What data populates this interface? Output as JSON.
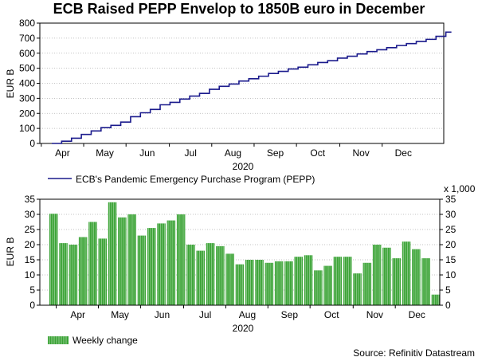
{
  "colors": {
    "line": "#1a1a8c",
    "bar": "#3aa335",
    "grid": "#b0b0b0"
  },
  "title": "ECB Raised PEPP Envelop to 1850B euro in December",
  "source": "Source: Refinitiv Datastream",
  "chart_data": [
    {
      "type": "line",
      "title": "ECB Raised PEPP Envelop to 1850B euro in December",
      "ylabel": "EUR B",
      "xlabel": "2020",
      "ylim": [
        0,
        800
      ],
      "yticks": [
        0,
        100,
        200,
        300,
        400,
        500,
        600,
        700,
        800
      ],
      "xlim": [
        0,
        41
      ],
      "month_labels": [
        "Apr",
        "May",
        "Jun",
        "Jul",
        "Aug",
        "Sep",
        "Oct",
        "Nov",
        "Dec"
      ],
      "month_positions": [
        2.3,
        6.6,
        10.9,
        15.3,
        19.6,
        23.9,
        28.2,
        32.6,
        36.9
      ],
      "legend": "ECB's Pandemic Emergency Purchase Program (PEPP)",
      "series": [
        {
          "name": "ECB's Pandemic Emergency Purchase Program (PEPP)",
          "x": [
            0,
            1,
            2,
            3,
            4,
            5,
            6,
            7,
            8,
            9,
            10,
            11,
            12,
            13,
            14,
            15,
            16,
            17,
            18,
            19,
            20,
            21,
            22,
            23,
            24,
            25,
            26,
            27,
            28,
            29,
            30,
            31,
            32,
            33,
            34,
            35,
            36,
            37,
            38,
            39,
            40
          ],
          "values": [
            0,
            15,
            35,
            60,
            83,
            105,
            120,
            142,
            178,
            204,
            226,
            257,
            273,
            295,
            315,
            333,
            360,
            380,
            395,
            415,
            430,
            447,
            465,
            479,
            495,
            507,
            523,
            538,
            550,
            567,
            580,
            595,
            611,
            623,
            637,
            651,
            664,
            678,
            692,
            712,
            740
          ]
        }
      ]
    },
    {
      "type": "bar",
      "ylabel": "EUR B",
      "xlabel": "2020",
      "ylim": [
        0,
        35
      ],
      "yticks": [
        0,
        5,
        10,
        15,
        20,
        25,
        30,
        35
      ],
      "right_axis_label": "x 1,000",
      "month_labels": [
        "Apr",
        "May",
        "Jun",
        "Jul",
        "Aug",
        "Sep",
        "Oct",
        "Nov",
        "Dec"
      ],
      "month_positions": [
        2.3,
        6.6,
        10.9,
        15.3,
        19.6,
        23.9,
        28.2,
        32.6,
        36.9
      ],
      "legend": "Weekly change",
      "series": [
        {
          "name": "Weekly change",
          "values": [
            30.2,
            20.5,
            20,
            22.5,
            27.5,
            22,
            34,
            29,
            30,
            23,
            25.5,
            27,
            28,
            30,
            20,
            18,
            20.5,
            19.5,
            17,
            13.5,
            15,
            15,
            14,
            14.5,
            14.5,
            16,
            16.5,
            11.5,
            13,
            16,
            16,
            10.5,
            14,
            20,
            19,
            15.5,
            21,
            18.5,
            15.5,
            3.5
          ]
        }
      ]
    }
  ]
}
